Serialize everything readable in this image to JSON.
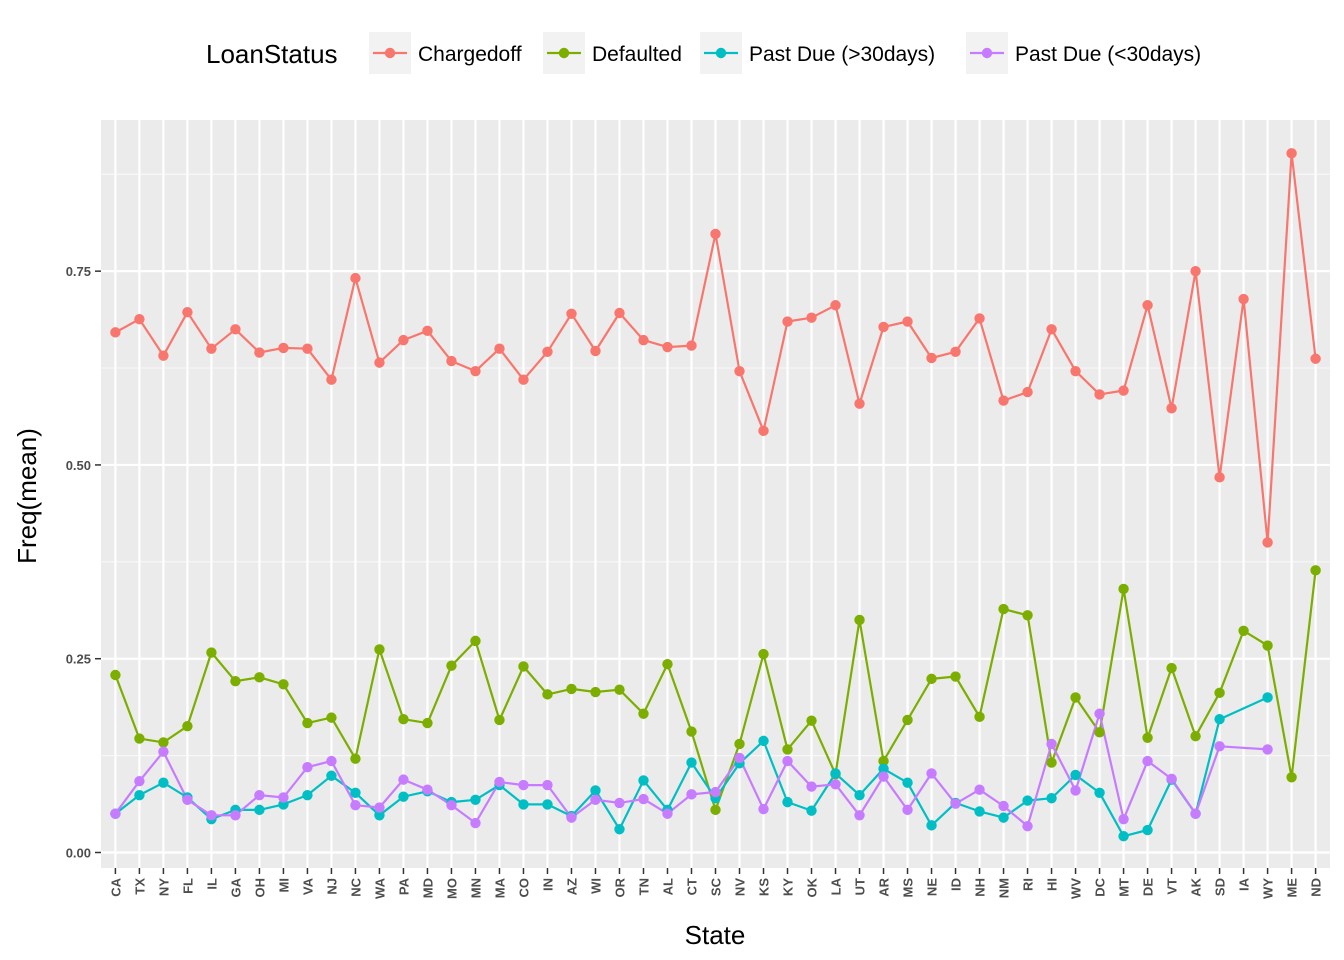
{
  "chart_data": {
    "type": "line",
    "xlabel": "State",
    "ylabel": "Freq(mean)",
    "legend_title": "LoanStatus",
    "legend_position": "top",
    "grid": true,
    "ylim": [
      -0.02,
      0.945
    ],
    "yticks": [
      0.0,
      0.25,
      0.5,
      0.75
    ],
    "ytick_labels": [
      "0.00",
      "0.25",
      "0.50",
      "0.75"
    ],
    "categories": [
      "CA",
      "TX",
      "NY",
      "FL",
      "IL",
      "GA",
      "OH",
      "MI",
      "VA",
      "NJ",
      "NC",
      "WA",
      "PA",
      "MD",
      "MO",
      "MN",
      "MA",
      "CO",
      "IN",
      "AZ",
      "WI",
      "OR",
      "TN",
      "AL",
      "CT",
      "SC",
      "NV",
      "KS",
      "KY",
      "OK",
      "LA",
      "UT",
      "AR",
      "MS",
      "NE",
      "ID",
      "NH",
      "NM",
      "RI",
      "HI",
      "WV",
      "DC",
      "MT",
      "DE",
      "VT",
      "AK",
      "SD",
      "IA",
      "WY",
      "ME",
      "ND"
    ],
    "series": [
      {
        "name": "Chargedoff",
        "color": "#F8766D",
        "values": [
          0.671,
          0.688,
          0.641,
          0.697,
          0.65,
          0.675,
          0.645,
          0.651,
          0.65,
          0.61,
          0.741,
          0.632,
          0.661,
          0.673,
          0.634,
          0.621,
          0.65,
          0.61,
          0.646,
          0.695,
          0.647,
          0.696,
          0.661,
          0.652,
          0.654,
          0.798,
          0.621,
          0.544,
          0.685,
          0.69,
          0.706,
          0.579,
          0.678,
          0.685,
          0.638,
          0.646,
          0.689,
          0.583,
          0.594,
          0.675,
          0.621,
          0.591,
          0.596,
          0.706,
          0.573,
          0.75,
          0.484,
          0.714,
          0.4,
          0.902,
          0.637
        ]
      },
      {
        "name": "Defaulted",
        "color": "#7CAE00",
        "values": [
          0.229,
          0.147,
          0.142,
          0.163,
          0.258,
          0.221,
          0.226,
          0.217,
          0.167,
          0.174,
          0.121,
          0.262,
          0.172,
          0.167,
          0.241,
          0.273,
          0.171,
          0.24,
          0.204,
          0.211,
          0.207,
          0.21,
          0.179,
          0.243,
          0.156,
          0.055,
          0.14,
          0.256,
          0.133,
          0.17,
          0.101,
          0.3,
          0.118,
          0.171,
          0.224,
          0.227,
          0.175,
          0.314,
          0.306,
          0.116,
          0.2,
          0.155,
          0.34,
          0.148,
          0.238,
          0.15,
          0.206,
          0.286,
          0.267,
          0.097,
          0.364
        ]
      },
      {
        "name": "Past Due (>30days)",
        "color": "#00BFC4",
        "values": [
          0.05,
          0.074,
          0.09,
          0.071,
          0.043,
          0.055,
          0.055,
          0.062,
          0.074,
          0.099,
          0.077,
          0.048,
          0.072,
          0.079,
          0.065,
          0.068,
          0.087,
          0.062,
          0.062,
          0.047,
          0.08,
          0.03,
          0.093,
          0.055,
          0.116,
          0.07,
          0.115,
          0.144,
          0.065,
          0.054,
          0.102,
          0.074,
          0.108,
          0.09,
          0.035,
          0.064,
          0.053,
          0.045,
          0.067,
          0.07,
          0.1,
          0.077,
          0.021,
          0.029,
          0.094,
          0.05,
          0.172,
          null,
          0.2,
          null,
          null
        ]
      },
      {
        "name": "Past Due (<30days)",
        "color": "#C77CFF",
        "values": [
          0.05,
          0.092,
          0.13,
          0.068,
          0.048,
          0.048,
          0.074,
          0.071,
          0.11,
          0.118,
          0.061,
          0.058,
          0.094,
          0.081,
          0.061,
          0.038,
          0.091,
          0.087,
          0.087,
          0.045,
          0.068,
          0.064,
          0.069,
          0.05,
          0.075,
          0.078,
          0.122,
          0.056,
          0.118,
          0.085,
          0.088,
          0.048,
          0.098,
          0.055,
          0.102,
          0.063,
          0.081,
          0.06,
          0.034,
          0.14,
          0.08,
          0.179,
          0.043,
          0.118,
          0.095,
          0.05,
          0.137,
          null,
          0.133,
          null,
          null
        ]
      }
    ]
  }
}
